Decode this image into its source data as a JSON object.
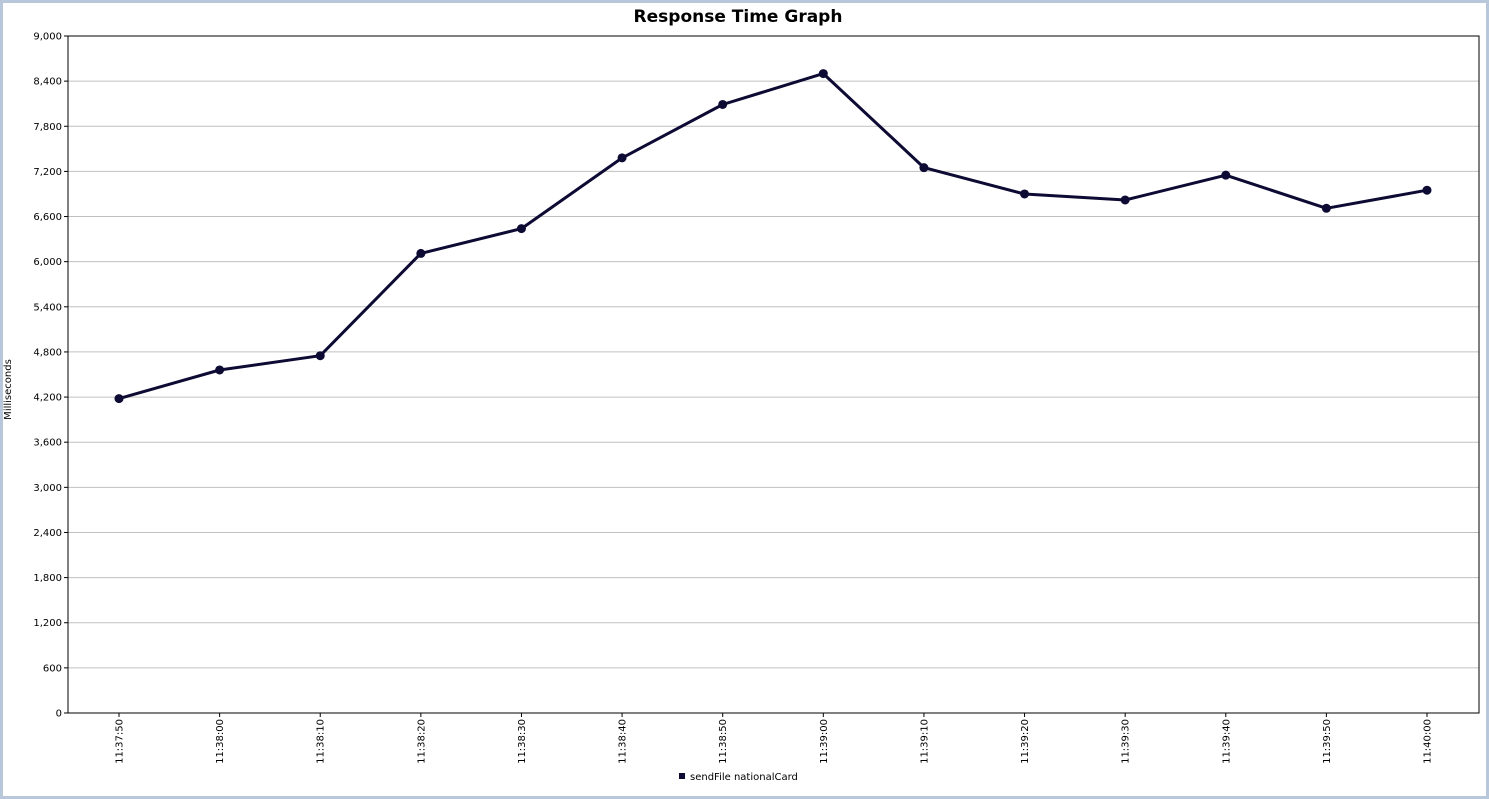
{
  "chart_data": {
    "type": "line",
    "title": "Response Time Graph",
    "xlabel": "",
    "ylabel": "Milliseconds",
    "ylim": [
      0,
      9000
    ],
    "yticks": [
      0,
      600,
      1200,
      1800,
      2400,
      3000,
      3600,
      4200,
      4800,
      5400,
      6000,
      6600,
      7200,
      7800,
      8400,
      9000
    ],
    "ytick_labels": [
      "0",
      "600",
      "1,200",
      "1,800",
      "2,400",
      "3,000",
      "3,600",
      "4,200",
      "4,800",
      "5,400",
      "6,000",
      "6,600",
      "7,200",
      "7,800",
      "8,400",
      "9,000"
    ],
    "categories": [
      "11:37:50",
      "11:38:00",
      "11:38:10",
      "11:38:20",
      "11:38:30",
      "11:38:40",
      "11:38:50",
      "11:39:00",
      "11:39:10",
      "11:39:20",
      "11:39:30",
      "11:39:40",
      "11:39:50",
      "11:40:00"
    ],
    "series": [
      {
        "name": "sendFile nationalCard",
        "color": "#0d0a33",
        "values": [
          4180,
          4560,
          4750,
          6110,
          6440,
          7380,
          8090,
          8500,
          7250,
          6900,
          6820,
          7150,
          6710,
          6950
        ]
      }
    ],
    "grid": true,
    "grid_color": "#c0c0c0",
    "legend_position": "bottom"
  }
}
